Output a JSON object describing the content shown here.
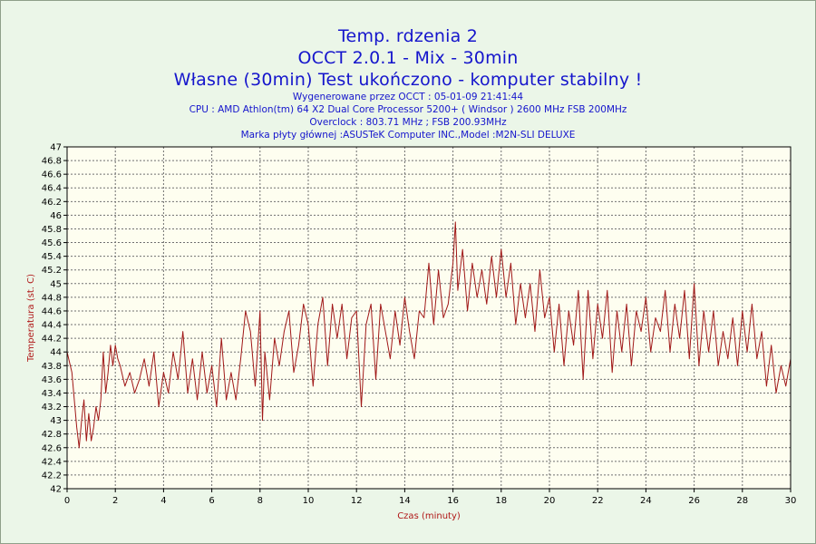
{
  "header": {
    "title_line1": "Temp. rdzenia 2",
    "title_line2": "OCCT 2.0.1 - Mix - 30min",
    "title_line3": "Własne (30min) Test ukończono - komputer stabilny !",
    "info_generated": "Wygenerowane przez OCCT : 05-01-09 21:41:44",
    "info_cpu": "CPU : AMD Athlon(tm) 64 X2 Dual Core Processor 5200+ ( Windsor ) 2600 MHz FSB 200MHz",
    "info_overclock": "Overclock : 803.71 MHz ; FSB 200.93MHz",
    "info_board": "Marka płyty głównej :ASUSTeK Computer INC.,Model :M2N-SLI DELUXE"
  },
  "colors": {
    "background": "#ebf6e8",
    "plot_background": "#fefef0",
    "title": "#1515cc",
    "line": "#a01818",
    "grid": "#707070"
  },
  "chart_data": {
    "type": "line",
    "title": "Temp. rdzenia 2",
    "xlabel": "Czas (minuty)",
    "ylabel": "Temperatura (st. C)",
    "xlim": [
      0,
      30
    ],
    "ylim": [
      42,
      47
    ],
    "x_ticks": [
      "0",
      "2",
      "4",
      "6",
      "8",
      "10",
      "12",
      "14",
      "16",
      "18",
      "20",
      "22",
      "24",
      "26",
      "28",
      "30"
    ],
    "y_ticks": [
      "42",
      "42.2",
      "42.4",
      "42.6",
      "42.8",
      "43",
      "43.2",
      "43.4",
      "43.6",
      "43.8",
      "44",
      "44.2",
      "44.4",
      "44.6",
      "44.8",
      "45",
      "45.2",
      "45.4",
      "45.6",
      "45.8",
      "46",
      "46.2",
      "46.4",
      "46.6",
      "46.8",
      "47"
    ],
    "grid": true,
    "legend": "none",
    "series": [
      {
        "name": "Temp. rdzenia 2",
        "x": [
          0,
          0.2,
          0.4,
          0.5,
          0.6,
          0.7,
          0.8,
          0.9,
          1.0,
          1.1,
          1.2,
          1.3,
          1.4,
          1.5,
          1.6,
          1.7,
          1.8,
          1.9,
          2.0,
          2.1,
          2.2,
          2.4,
          2.6,
          2.8,
          3.0,
          3.2,
          3.4,
          3.6,
          3.8,
          4.0,
          4.2,
          4.4,
          4.6,
          4.8,
          5.0,
          5.2,
          5.4,
          5.6,
          5.8,
          6.0,
          6.2,
          6.4,
          6.6,
          6.8,
          7.0,
          7.2,
          7.4,
          7.6,
          7.8,
          8.0,
          8.1,
          8.2,
          8.4,
          8.6,
          8.8,
          9.0,
          9.2,
          9.4,
          9.6,
          9.8,
          10.0,
          10.2,
          10.4,
          10.6,
          10.8,
          11.0,
          11.2,
          11.4,
          11.6,
          11.8,
          12.0,
          12.2,
          12.4,
          12.6,
          12.8,
          13.0,
          13.2,
          13.4,
          13.6,
          13.8,
          14.0,
          14.2,
          14.4,
          14.6,
          14.8,
          15.0,
          15.2,
          15.4,
          15.6,
          15.8,
          16.0,
          16.1,
          16.2,
          16.4,
          16.6,
          16.8,
          17.0,
          17.2,
          17.4,
          17.6,
          17.8,
          18.0,
          18.2,
          18.4,
          18.6,
          18.8,
          19.0,
          19.2,
          19.4,
          19.6,
          19.8,
          20.0,
          20.2,
          20.4,
          20.6,
          20.8,
          21.0,
          21.2,
          21.4,
          21.6,
          21.8,
          22.0,
          22.2,
          22.4,
          22.6,
          22.8,
          23.0,
          23.2,
          23.4,
          23.6,
          23.8,
          24.0,
          24.2,
          24.4,
          24.6,
          24.8,
          25.0,
          25.2,
          25.4,
          25.6,
          25.8,
          26.0,
          26.2,
          26.4,
          26.6,
          26.8,
          27.0,
          27.2,
          27.4,
          27.6,
          27.8,
          28.0,
          28.2,
          28.4,
          28.6,
          28.8,
          29.0,
          29.2,
          29.4,
          29.6,
          29.8,
          30.0
        ],
        "values": [
          44.0,
          43.7,
          42.9,
          42.6,
          43.0,
          43.3,
          42.7,
          43.1,
          42.7,
          42.9,
          43.2,
          43.0,
          43.3,
          44.0,
          43.4,
          43.7,
          44.1,
          43.8,
          44.1,
          43.9,
          43.8,
          43.5,
          43.7,
          43.4,
          43.6,
          43.9,
          43.5,
          44.0,
          43.2,
          43.7,
          43.4,
          44.0,
          43.6,
          44.3,
          43.4,
          43.9,
          43.3,
          44.0,
          43.4,
          43.8,
          43.2,
          44.2,
          43.3,
          43.7,
          43.3,
          43.9,
          44.6,
          44.3,
          43.5,
          44.6,
          43.0,
          44.0,
          43.3,
          44.2,
          43.8,
          44.3,
          44.6,
          43.7,
          44.1,
          44.7,
          44.4,
          43.5,
          44.4,
          44.8,
          43.8,
          44.7,
          44.2,
          44.7,
          43.9,
          44.5,
          44.6,
          43.2,
          44.4,
          44.7,
          43.6,
          44.7,
          44.3,
          43.9,
          44.6,
          44.1,
          44.8,
          44.3,
          43.9,
          44.6,
          44.5,
          45.3,
          44.4,
          45.2,
          44.5,
          44.7,
          45.3,
          45.9,
          44.9,
          45.5,
          44.6,
          45.3,
          44.8,
          45.2,
          44.7,
          45.4,
          44.8,
          45.5,
          44.8,
          45.3,
          44.4,
          45.0,
          44.5,
          45.0,
          44.3,
          45.2,
          44.5,
          44.8,
          44.0,
          44.7,
          43.8,
          44.6,
          44.1,
          44.9,
          43.6,
          44.9,
          43.9,
          44.7,
          44.2,
          44.9,
          43.7,
          44.6,
          44.0,
          44.7,
          43.8,
          44.6,
          44.3,
          44.8,
          44.0,
          44.5,
          44.3,
          44.9,
          44.0,
          44.7,
          44.2,
          44.9,
          43.9,
          45.0,
          43.8,
          44.6,
          44.0,
          44.6,
          43.8,
          44.3,
          43.9,
          44.5,
          43.8,
          44.6,
          44.0,
          44.7,
          43.9,
          44.3,
          43.5,
          44.1,
          43.4,
          43.8,
          43.5,
          43.9
        ]
      }
    ]
  }
}
